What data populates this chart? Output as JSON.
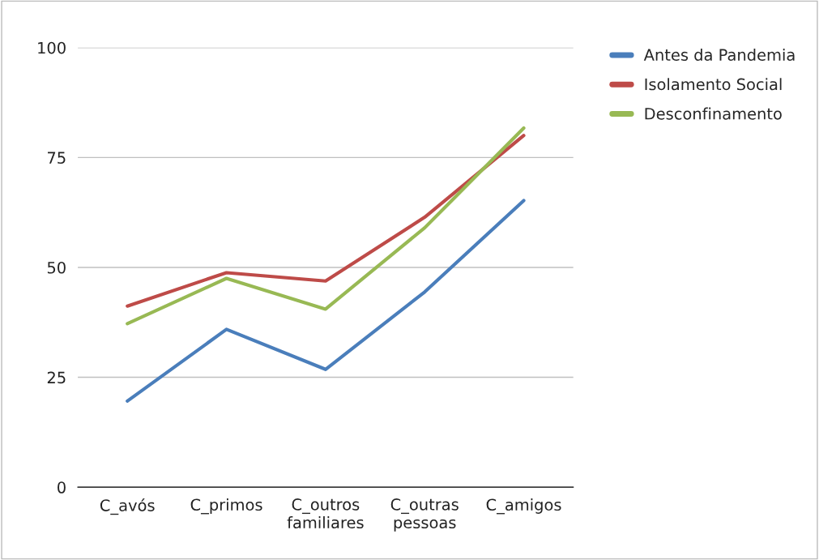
{
  "chart_data": {
    "type": "line",
    "categories": [
      "C_avós",
      "C_primos",
      "C_outros\nfamiliares",
      "C_outras\npessoas",
      "C_amigos"
    ],
    "series": [
      {
        "name": "Antes da Pandemia",
        "color": "#4a7ebb",
        "values": [
          19.6,
          35.9,
          26.8,
          44.4,
          65.2
        ]
      },
      {
        "name": "Isolamento Social",
        "color": "#be4b48",
        "values": [
          41.2,
          48.8,
          46.9,
          61.4,
          80.0
        ]
      },
      {
        "name": "Desconfinamento",
        "color": "#98b954",
        "values": [
          37.2,
          47.5,
          40.5,
          59.0,
          81.7
        ]
      }
    ],
    "ylim": [
      0,
      100
    ],
    "yticks": [
      0,
      25,
      50,
      75,
      100
    ],
    "grid": "y",
    "legend": "right",
    "marker": "none",
    "line_style": "solid"
  }
}
